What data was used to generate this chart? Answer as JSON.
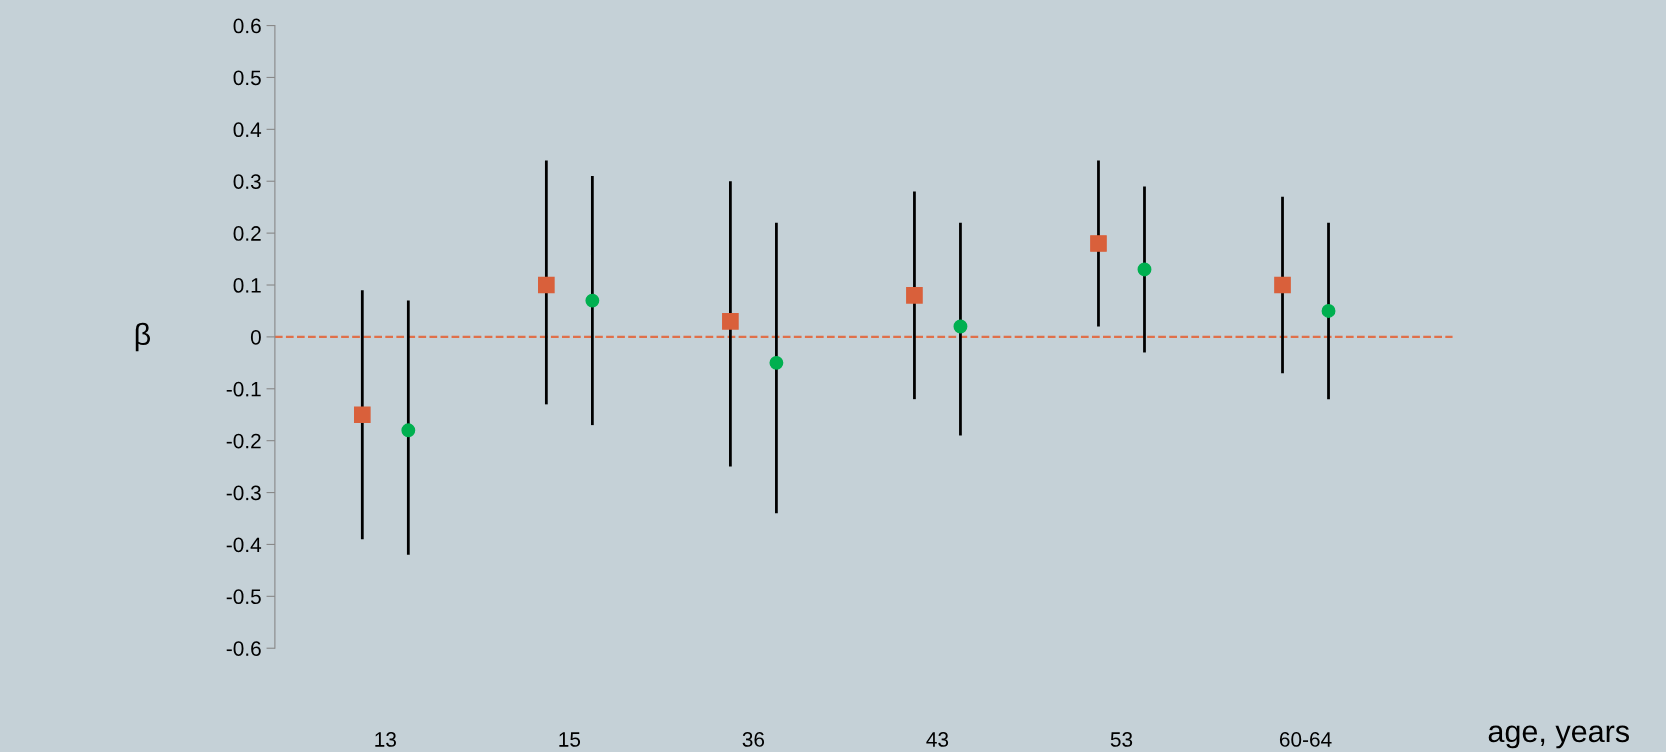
{
  "chart_data": {
    "type": "scatter",
    "xlabel": "age, years",
    "ylabel": "β",
    "categories": [
      "13",
      "15",
      "36",
      "43",
      "53",
      "60-64"
    ],
    "series": [
      {
        "color": "#d9603b",
        "marker": "square",
        "values": [
          -0.15,
          0.1,
          0.03,
          0.08,
          0.18,
          0.1
        ],
        "errors": [
          [
            -0.39,
            0.09
          ],
          [
            -0.13,
            0.34
          ],
          [
            -0.25,
            0.3
          ],
          [
            -0.12,
            0.28
          ],
          [
            0.02,
            0.34
          ],
          [
            -0.07,
            0.27
          ]
        ]
      },
      {
        "color": "#00b050",
        "marker": "circle",
        "values": [
          -0.18,
          0.07,
          -0.05,
          0.02,
          0.13,
          0.05
        ],
        "errors": [
          [
            -0.42,
            0.07
          ],
          [
            -0.17,
            0.31
          ],
          [
            -0.34,
            0.22
          ],
          [
            -0.19,
            0.22
          ],
          [
            -0.03,
            0.29
          ],
          [
            -0.12,
            0.22
          ]
        ]
      }
    ],
    "ylim": [
      -0.6,
      0.6
    ],
    "yticks": [
      -0.6,
      -0.5,
      -0.4,
      -0.3,
      -0.2,
      -0.1,
      0,
      0.1,
      0.2,
      0.3,
      0.4,
      0.5,
      0.6
    ],
    "ref_lines": [
      {
        "axis": "y",
        "value": 0,
        "color": "#e0704a",
        "line_style": "dashed"
      }
    ],
    "grid": false,
    "legend": false
  }
}
